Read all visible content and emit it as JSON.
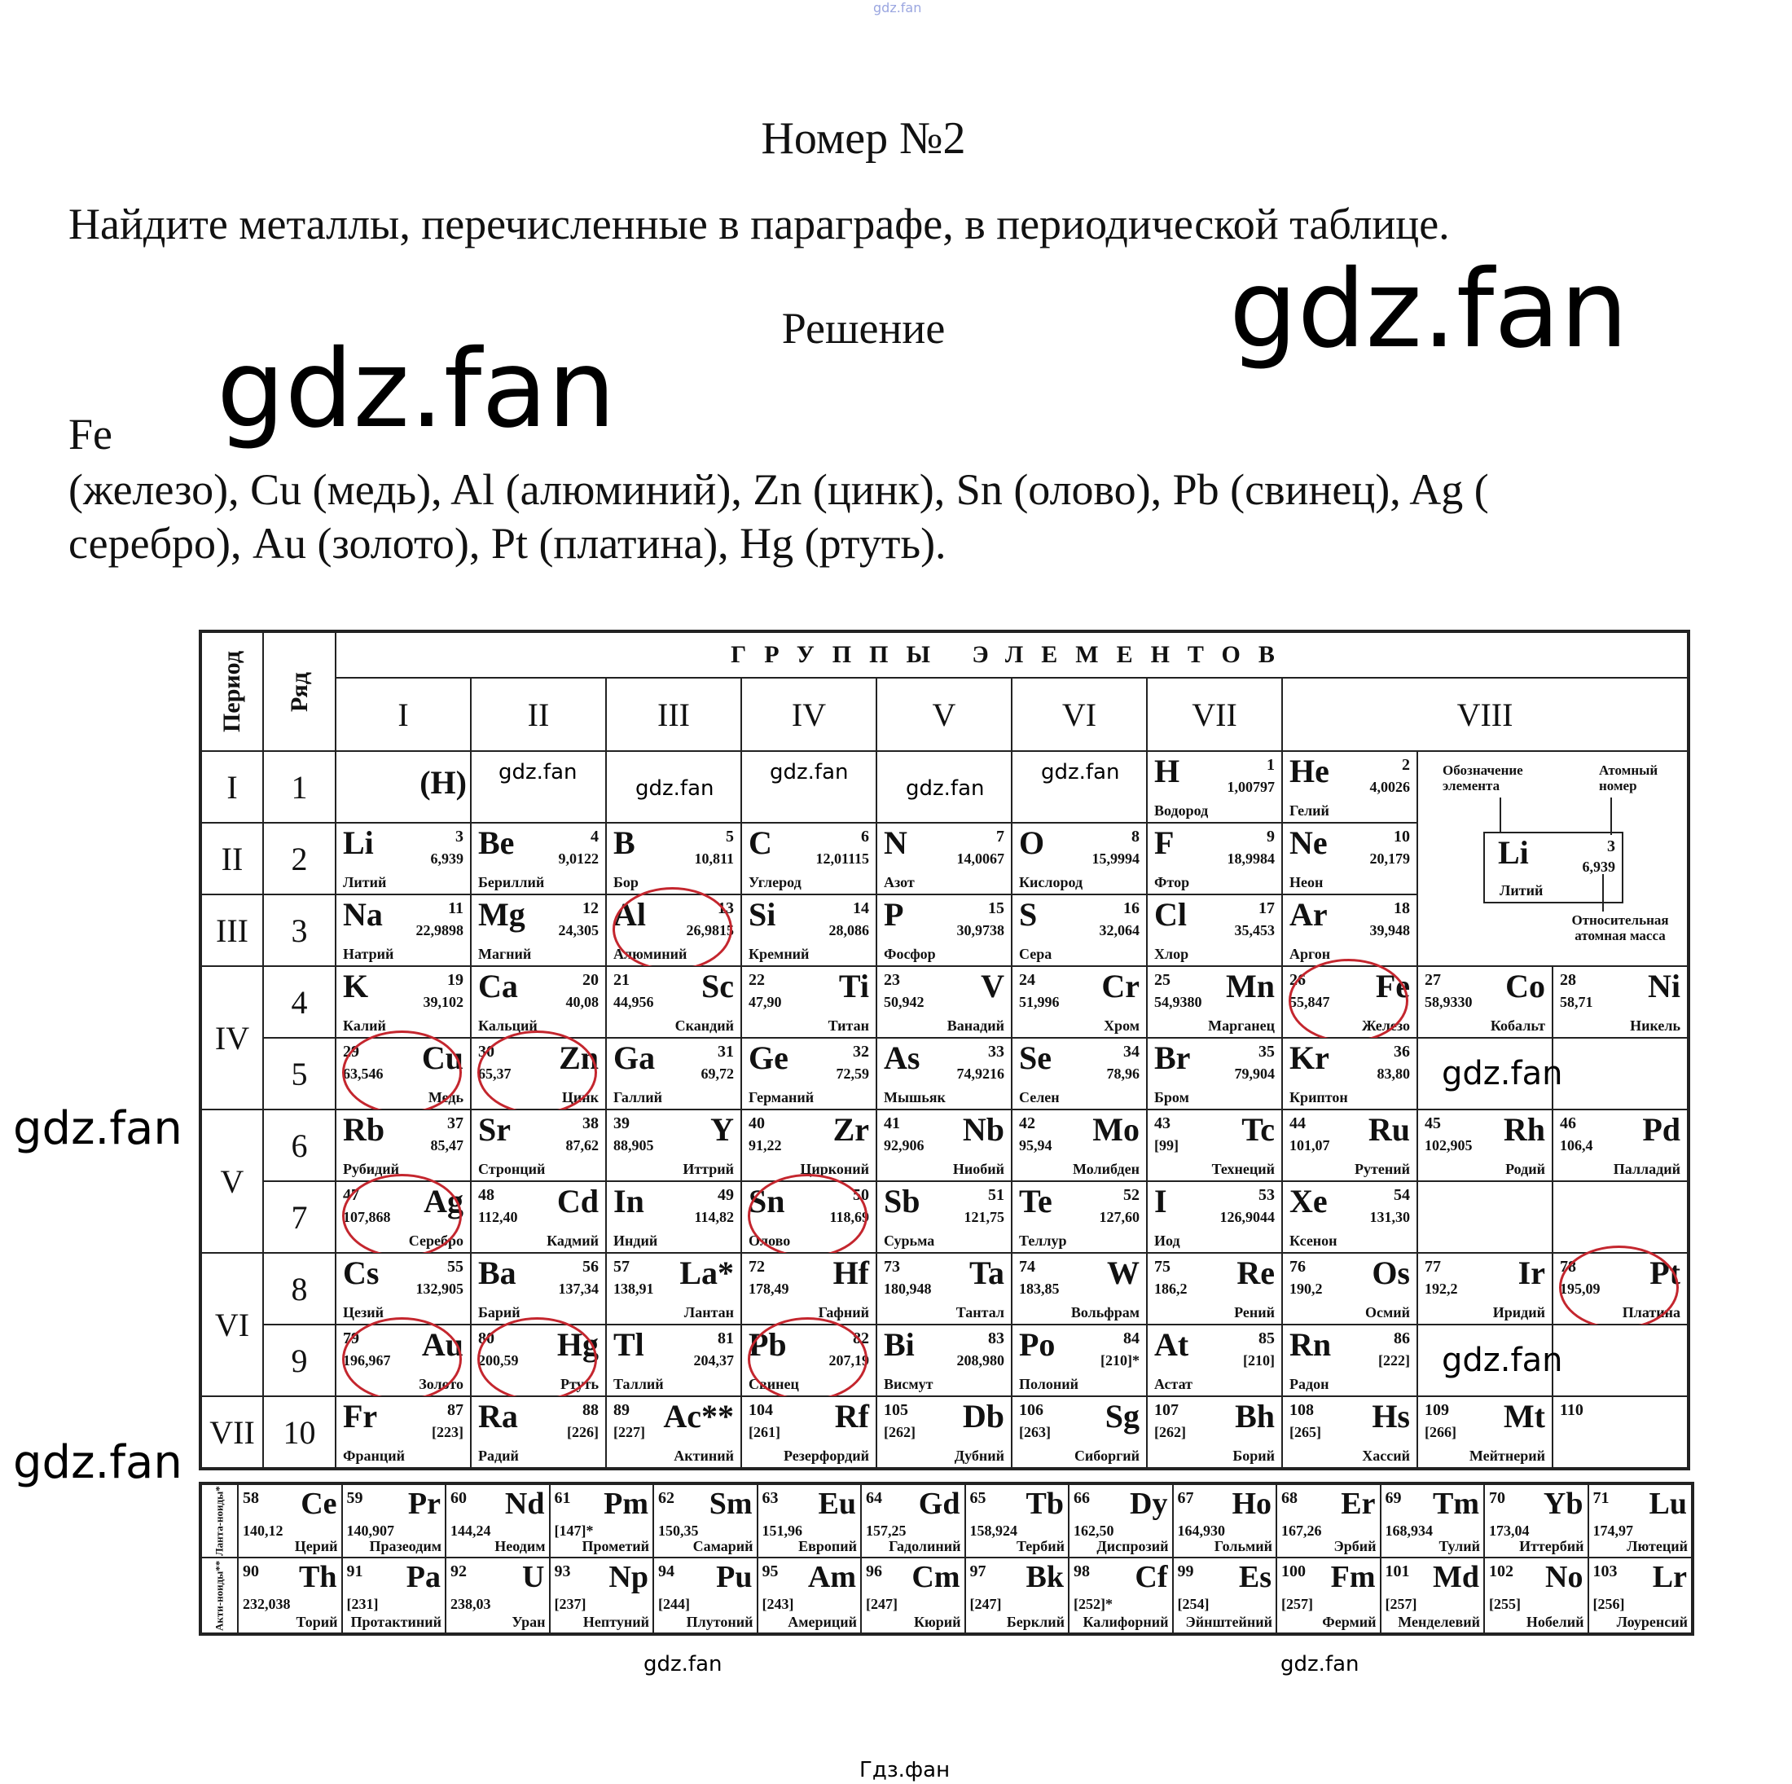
{
  "watermark_top": "gdz.fan",
  "title": "Номер №2",
  "task": "Найдите металлы, перечисленные в параграфе, в периодической таблице.",
  "solution_heading": "Решение",
  "watermark": "gdz.fan",
  "answer": {
    "first": "Fe",
    "line1": "(железо), Cu (медь), Al (алюминий), Zn (цинк), Sn (олово), Pb (свинец), Ag (",
    "line2": "серебро), Au (золото), Pt (платина), Hg (ртуть)."
  },
  "footer": "Гдз.фан",
  "colors": {
    "circle": "#c4262e"
  },
  "table": {
    "period_header": "Период",
    "row_header": "Ряд",
    "groups_header": "ГРУППЫ ЭЛЕМЕНТОВ",
    "groups": [
      "I",
      "II",
      "III",
      "IV",
      "V",
      "VI",
      "VII",
      "VIII"
    ],
    "periods": [
      "I",
      "II",
      "III",
      "IV",
      "V",
      "VI",
      "VII"
    ],
    "h_in_group1": "(H)",
    "legend": {
      "symbol_label": "Обозначение элемента",
      "number_label": "Атомный номер",
      "mass_label": "Относительная атомная масса",
      "example": {
        "sym": "Li",
        "num": "3",
        "mass": "6,939",
        "name": "Литий"
      }
    },
    "rows": [
      {
        "n": "1",
        "cells": {
          "6": {
            "sym": "H",
            "num": "1",
            "mass": "1,00797",
            "name": "Водород"
          },
          "7": {
            "sym": "He",
            "num": "2",
            "mass": "4,0026",
            "name": "Гелий"
          }
        }
      },
      {
        "n": "2",
        "cells": {
          "0": {
            "sym": "Li",
            "num": "3",
            "mass": "6,939",
            "name": "Литий"
          },
          "1": {
            "sym": "Be",
            "num": "4",
            "mass": "9,0122",
            "name": "Бериллий"
          },
          "2": {
            "sym": "B",
            "num": "5",
            "mass": "10,811",
            "name": "Бор"
          },
          "3": {
            "sym": "C",
            "num": "6",
            "mass": "12,01115",
            "name": "Углерод"
          },
          "4": {
            "sym": "N",
            "num": "7",
            "mass": "14,0067",
            "name": "Азот"
          },
          "5": {
            "sym": "O",
            "num": "8",
            "mass": "15,9994",
            "name": "Кислород"
          },
          "6": {
            "sym": "F",
            "num": "9",
            "mass": "18,9984",
            "name": "Фтор"
          },
          "7": {
            "sym": "Ne",
            "num": "10",
            "mass": "20,179",
            "name": "Неон"
          }
        }
      },
      {
        "n": "3",
        "cells": {
          "0": {
            "sym": "Na",
            "num": "11",
            "mass": "22,9898",
            "name": "Натрий"
          },
          "1": {
            "sym": "Mg",
            "num": "12",
            "mass": "24,305",
            "name": "Магний"
          },
          "2": {
            "sym": "Al",
            "num": "13",
            "mass": "26,9815",
            "name": "Алюминий",
            "circled": true
          },
          "3": {
            "sym": "Si",
            "num": "14",
            "mass": "28,086",
            "name": "Кремний"
          },
          "4": {
            "sym": "P",
            "num": "15",
            "mass": "30,9738",
            "name": "Фосфор"
          },
          "5": {
            "sym": "S",
            "num": "16",
            "mass": "32,064",
            "name": "Сера"
          },
          "6": {
            "sym": "Cl",
            "num": "17",
            "mass": "35,453",
            "name": "Хлор"
          },
          "7": {
            "sym": "Ar",
            "num": "18",
            "mass": "39,948",
            "name": "Аргон"
          }
        }
      },
      {
        "n": "4",
        "cells": {
          "0": {
            "sym": "K",
            "num": "19",
            "mass": "39,102",
            "name": "Калий"
          },
          "1": {
            "sym": "Ca",
            "num": "20",
            "mass": "40,08",
            "name": "Кальций"
          },
          "2": {
            "sym": "Sc",
            "num": "21",
            "mass": "44,956",
            "name": "Скандий"
          },
          "3": {
            "sym": "Ti",
            "num": "22",
            "mass": "47,90",
            "name": "Титан"
          },
          "4": {
            "sym": "V",
            "num": "23",
            "mass": "50,942",
            "name": "Ванадий"
          },
          "5": {
            "sym": "Cr",
            "num": "24",
            "mass": "51,996",
            "name": "Хром"
          },
          "6": {
            "sym": "Mn",
            "num": "25",
            "mass": "54,9380",
            "name": "Марганец"
          },
          "7": {
            "sym": "Fe",
            "num": "26",
            "mass": "55,847",
            "name": "Железо",
            "circled": true
          },
          "8": {
            "sym": "Co",
            "num": "27",
            "mass": "58,9330",
            "name": "Кобальт"
          },
          "9": {
            "sym": "Ni",
            "num": "28",
            "mass": "58,71",
            "name": "Никель"
          }
        }
      },
      {
        "n": "5",
        "cells": {
          "0": {
            "sym": "Cu",
            "num": "29",
            "mass": "63,546",
            "name": "Медь",
            "circled": true
          },
          "1": {
            "sym": "Zn",
            "num": "30",
            "mass": "65,37",
            "name": "Цинк",
            "circled": true
          },
          "2": {
            "sym": "Ga",
            "num": "31",
            "mass": "69,72",
            "name": "Галлий"
          },
          "3": {
            "sym": "Ge",
            "num": "32",
            "mass": "72,59",
            "name": "Германий"
          },
          "4": {
            "sym": "As",
            "num": "33",
            "mass": "74,9216",
            "name": "Мышьяк"
          },
          "5": {
            "sym": "Se",
            "num": "34",
            "mass": "78,96",
            "name": "Селен"
          },
          "6": {
            "sym": "Br",
            "num": "35",
            "mass": "79,904",
            "name": "Бром"
          },
          "7": {
            "sym": "Kr",
            "num": "36",
            "mass": "83,80",
            "name": "Криптон"
          }
        }
      },
      {
        "n": "6",
        "cells": {
          "0": {
            "sym": "Rb",
            "num": "37",
            "mass": "85,47",
            "name": "Рубидий"
          },
          "1": {
            "sym": "Sr",
            "num": "38",
            "mass": "87,62",
            "name": "Стронций"
          },
          "2": {
            "sym": "Y",
            "num": "39",
            "mass": "88,905",
            "name": "Иттрий"
          },
          "3": {
            "sym": "Zr",
            "num": "40",
            "mass": "91,22",
            "name": "Цирконий"
          },
          "4": {
            "sym": "Nb",
            "num": "41",
            "mass": "92,906",
            "name": "Ниобий"
          },
          "5": {
            "sym": "Mo",
            "num": "42",
            "mass": "95,94",
            "name": "Молибден"
          },
          "6": {
            "sym": "Tc",
            "num": "43",
            "mass": "[99]",
            "name": "Технеций"
          },
          "7": {
            "sym": "Ru",
            "num": "44",
            "mass": "101,07",
            "name": "Рутений"
          },
          "8": {
            "sym": "Rh",
            "num": "45",
            "mass": "102,905",
            "name": "Родий"
          },
          "9": {
            "sym": "Pd",
            "num": "46",
            "mass": "106,4",
            "name": "Палладий"
          }
        }
      },
      {
        "n": "7",
        "cells": {
          "0": {
            "sym": "Ag",
            "num": "47",
            "mass": "107,868",
            "name": "Серебро",
            "circled": true
          },
          "1": {
            "sym": "Cd",
            "num": "48",
            "mass": "112,40",
            "name": "Кадмий"
          },
          "2": {
            "sym": "In",
            "num": "49",
            "mass": "114,82",
            "name": "Индий"
          },
          "3": {
            "sym": "Sn",
            "num": "50",
            "mass": "118,69",
            "name": "Олово",
            "circled": true
          },
          "4": {
            "sym": "Sb",
            "num": "51",
            "mass": "121,75",
            "name": "Сурьма"
          },
          "5": {
            "sym": "Te",
            "num": "52",
            "mass": "127,60",
            "name": "Теллур"
          },
          "6": {
            "sym": "I",
            "num": "53",
            "mass": "126,9044",
            "name": "Иод"
          },
          "7": {
            "sym": "Xe",
            "num": "54",
            "mass": "131,30",
            "name": "Ксенон"
          }
        }
      },
      {
        "n": "8",
        "cells": {
          "0": {
            "sym": "Cs",
            "num": "55",
            "mass": "132,905",
            "name": "Цезий"
          },
          "1": {
            "sym": "Ba",
            "num": "56",
            "mass": "137,34",
            "name": "Барий"
          },
          "2": {
            "sym": "La*",
            "num": "57",
            "mass": "138,91",
            "name": "Лантан"
          },
          "3": {
            "sym": "Hf",
            "num": "72",
            "mass": "178,49",
            "name": "Гафний"
          },
          "4": {
            "sym": "Ta",
            "num": "73",
            "mass": "180,948",
            "name": "Тантал"
          },
          "5": {
            "sym": "W",
            "num": "74",
            "mass": "183,85",
            "name": "Вольфрам"
          },
          "6": {
            "sym": "Re",
            "num": "75",
            "mass": "186,2",
            "name": "Рений"
          },
          "7": {
            "sym": "Os",
            "num": "76",
            "mass": "190,2",
            "name": "Осмий"
          },
          "8": {
            "sym": "Ir",
            "num": "77",
            "mass": "192,2",
            "name": "Иридий"
          },
          "9": {
            "sym": "Pt",
            "num": "78",
            "mass": "195,09",
            "name": "Платина",
            "circled": true
          }
        }
      },
      {
        "n": "9",
        "cells": {
          "0": {
            "sym": "Au",
            "num": "79",
            "mass": "196,967",
            "name": "Золото",
            "circled": true
          },
          "1": {
            "sym": "Hg",
            "num": "80",
            "mass": "200,59",
            "name": "Ртуть",
            "circled": true
          },
          "2": {
            "sym": "Tl",
            "num": "81",
            "mass": "204,37",
            "name": "Таллий"
          },
          "3": {
            "sym": "Pb",
            "num": "82",
            "mass": "207,19",
            "name": "Свинец",
            "circled": true
          },
          "4": {
            "sym": "Bi",
            "num": "83",
            "mass": "208,980",
            "name": "Висмут"
          },
          "5": {
            "sym": "Po",
            "num": "84",
            "mass": "[210]*",
            "name": "Полоний"
          },
          "6": {
            "sym": "At",
            "num": "85",
            "mass": "[210]",
            "name": "Астат"
          },
          "7": {
            "sym": "Rn",
            "num": "86",
            "mass": "[222]",
            "name": "Радон"
          }
        }
      },
      {
        "n": "10",
        "cells": {
          "0": {
            "sym": "Fr",
            "num": "87",
            "mass": "[223]",
            "name": "Франций"
          },
          "1": {
            "sym": "Ra",
            "num": "88",
            "mass": "[226]",
            "name": "Радий"
          },
          "2": {
            "sym": "Ac**",
            "num": "89",
            "mass": "[227]",
            "name": "Актиний"
          },
          "3": {
            "sym": "Rf",
            "num": "104",
            "mass": "[261]",
            "name": "Резерфордий"
          },
          "4": {
            "sym": "Db",
            "num": "105",
            "mass": "[262]",
            "name": "Дубний"
          },
          "5": {
            "sym": "Sg",
            "num": "106",
            "mass": "[263]",
            "name": "Сиборгий"
          },
          "6": {
            "sym": "Bh",
            "num": "107",
            "mass": "[262]",
            "name": "Борий"
          },
          "7": {
            "sym": "Hs",
            "num": "108",
            "mass": "[265]",
            "name": "Хассий"
          },
          "8": {
            "sym": "Mt",
            "num": "109",
            "mass": "[266]",
            "name": "Мейтнерий"
          },
          "9": {
            "sym": "",
            "num": "110",
            "mass": "",
            "name": ""
          }
        }
      }
    ],
    "lanthanides_label": "Ланта-ноиды*",
    "actinides_label": "Акти-ноиды**",
    "lanthanides": [
      {
        "sym": "Ce",
        "num": "58",
        "mass": "140,12",
        "name": "Церий"
      },
      {
        "sym": "Pr",
        "num": "59",
        "mass": "140,907",
        "name": "Празеодим"
      },
      {
        "sym": "Nd",
        "num": "60",
        "mass": "144,24",
        "name": "Неодим"
      },
      {
        "sym": "Pm",
        "num": "61",
        "mass": "[147]*",
        "name": "Прометий"
      },
      {
        "sym": "Sm",
        "num": "62",
        "mass": "150,35",
        "name": "Самарий"
      },
      {
        "sym": "Eu",
        "num": "63",
        "mass": "151,96",
        "name": "Европий"
      },
      {
        "sym": "Gd",
        "num": "64",
        "mass": "157,25",
        "name": "Гадолиний"
      },
      {
        "sym": "Tb",
        "num": "65",
        "mass": "158,924",
        "name": "Тербий"
      },
      {
        "sym": "Dy",
        "num": "66",
        "mass": "162,50",
        "name": "Диспрозий"
      },
      {
        "sym": "Ho",
        "num": "67",
        "mass": "164,930",
        "name": "Гольмий"
      },
      {
        "sym": "Er",
        "num": "68",
        "mass": "167,26",
        "name": "Эрбий"
      },
      {
        "sym": "Tm",
        "num": "69",
        "mass": "168,934",
        "name": "Тулий"
      },
      {
        "sym": "Yb",
        "num": "70",
        "mass": "173,04",
        "name": "Иттербий"
      },
      {
        "sym": "Lu",
        "num": "71",
        "mass": "174,97",
        "name": "Лютеций"
      }
    ],
    "actinides": [
      {
        "sym": "Th",
        "num": "90",
        "mass": "232,038",
        "name": "Торий"
      },
      {
        "sym": "Pa",
        "num": "91",
        "mass": "[231]",
        "name": "Протактиний"
      },
      {
        "sym": "U",
        "num": "92",
        "mass": "238,03",
        "name": "Уран"
      },
      {
        "sym": "Np",
        "num": "93",
        "mass": "[237]",
        "name": "Нептуний"
      },
      {
        "sym": "Pu",
        "num": "94",
        "mass": "[244]",
        "name": "Плутоний"
      },
      {
        "sym": "Am",
        "num": "95",
        "mass": "[243]",
        "name": "Америций"
      },
      {
        "sym": "Cm",
        "num": "96",
        "mass": "[247]",
        "name": "Кюрий"
      },
      {
        "sym": "Bk",
        "num": "97",
        "mass": "[247]",
        "name": "Берклий"
      },
      {
        "sym": "Cf",
        "num": "98",
        "mass": "[252]*",
        "name": "Калифорний"
      },
      {
        "sym": "Es",
        "num": "99",
        "mass": "[254]",
        "name": "Эйнштейний"
      },
      {
        "sym": "Fm",
        "num": "100",
        "mass": "[257]",
        "name": "Фермий"
      },
      {
        "sym": "Md",
        "num": "101",
        "mass": "[257]",
        "name": "Менделевий"
      },
      {
        "sym": "No",
        "num": "102",
        "mass": "[255]",
        "name": "Нобелий"
      },
      {
        "sym": "Lr",
        "num": "103",
        "mass": "[256]",
        "name": "Лоуренсий"
      }
    ]
  }
}
